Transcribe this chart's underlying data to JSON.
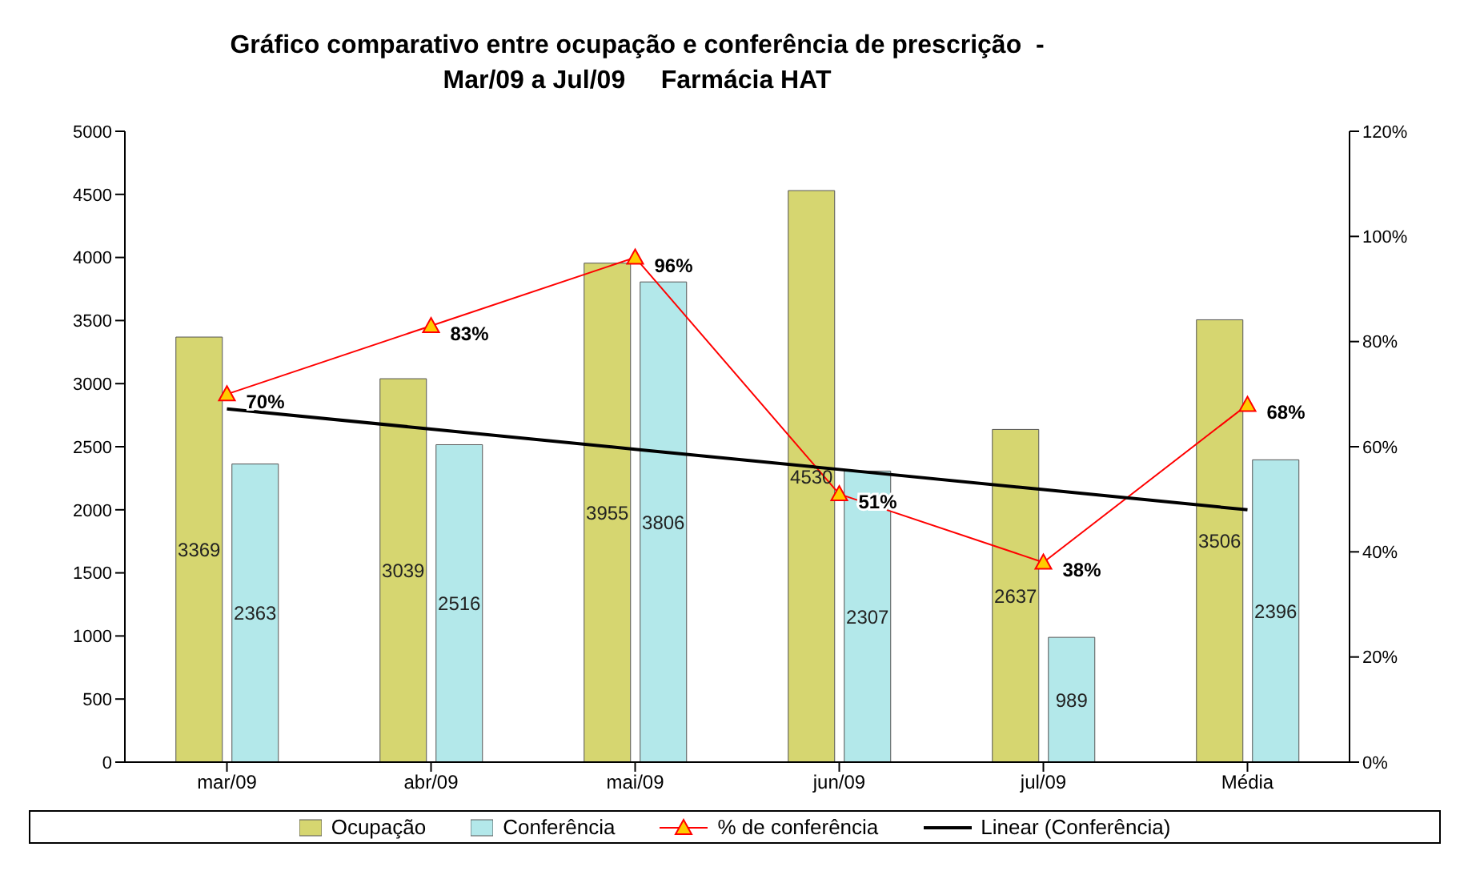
{
  "chart_data": {
    "type": "bar",
    "title": "Gráfico comparativo entre ocupação e conferência de prescrição  -\nMar/09 a Jul/09     Farmácia HAT",
    "categories": [
      "mar/09",
      "abr/09",
      "mai/09",
      "jun/09",
      "jul/09",
      "Média"
    ],
    "series": [
      {
        "name": "Ocupação",
        "color": "#d6d670",
        "values": [
          3369,
          3039,
          3955,
          4530,
          2637,
          3506
        ]
      },
      {
        "name": "Conferência",
        "color": "#b3e8ea",
        "values": [
          2363,
          2516,
          3806,
          2307,
          989,
          2396
        ]
      },
      {
        "name": "% de conferência",
        "type": "line",
        "axis": "y2",
        "color": "#ff0000",
        "marker": "triangle",
        "values": [
          70,
          83,
          96,
          51,
          38,
          68
        ],
        "value_labels": [
          "70%",
          "83%",
          "96%",
          "51%",
          "38%",
          "68%"
        ]
      },
      {
        "name": "Linear (Conferência)",
        "type": "line",
        "color": "#000000",
        "marker": "none",
        "values": [
          2800,
          2640,
          2480,
          2320,
          2160,
          2000
        ],
        "value_labels": [
          null,
          null,
          null,
          null,
          null,
          null
        ]
      }
    ],
    "ylim": [
      0,
      5000
    ],
    "yticks": [
      0,
      500,
      1000,
      1500,
      2000,
      2500,
      3000,
      3500,
      4000,
      4500,
      5000
    ],
    "y2lim": [
      0,
      120
    ],
    "y2ticks": [
      {
        "value": 0,
        "label": "0%"
      },
      {
        "value": 20,
        "label": "20%"
      },
      {
        "value": 40,
        "label": "40%"
      },
      {
        "value": 60,
        "label": "60%"
      },
      {
        "value": 80,
        "label": "80%"
      },
      {
        "value": 100,
        "label": "100%"
      },
      {
        "value": 120,
        "label": "120%"
      }
    ],
    "data_labels": true,
    "grid": false,
    "legend": "bottom"
  }
}
